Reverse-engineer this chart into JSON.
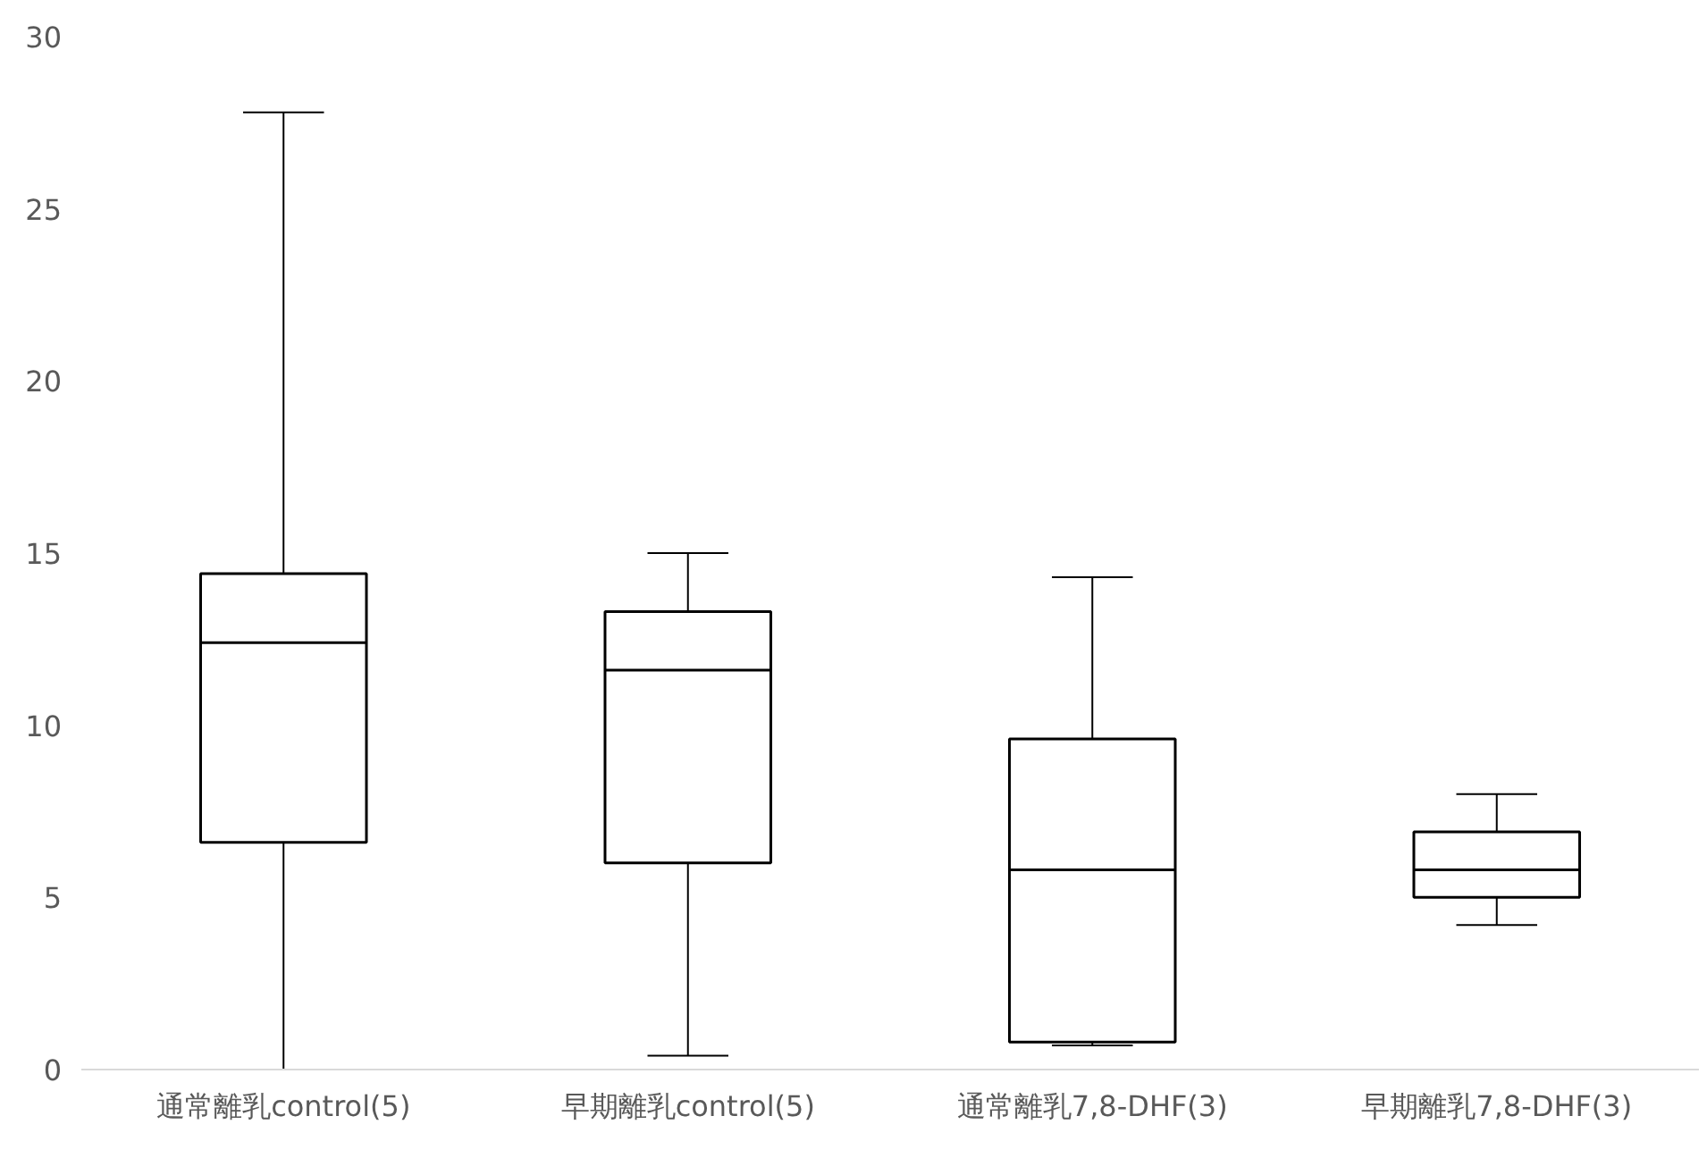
{
  "chart_data": {
    "type": "box",
    "categories": [
      "通常離乳control(5)",
      "早期離乳control(5)",
      "通常離乳7,8-DHF(3)",
      "早期離乳7,8-DHF(3)"
    ],
    "boxes": [
      {
        "low": 0,
        "q1": 6.6,
        "median": 12.4,
        "q3": 14.4,
        "high": 27.8
      },
      {
        "low": 0.4,
        "q1": 6.0,
        "median": 11.6,
        "q3": 13.3,
        "high": 15.0
      },
      {
        "low": 0.7,
        "q1": 0.8,
        "median": 5.8,
        "q3": 9.6,
        "high": 14.3
      },
      {
        "low": 4.2,
        "q1": 5.0,
        "median": 5.8,
        "q3": 6.9,
        "high": 8.0
      }
    ],
    "color": "#ffffff",
    "ylim": [
      0,
      30
    ],
    "yticks": [
      0,
      5,
      10,
      15,
      20,
      25,
      30
    ]
  }
}
